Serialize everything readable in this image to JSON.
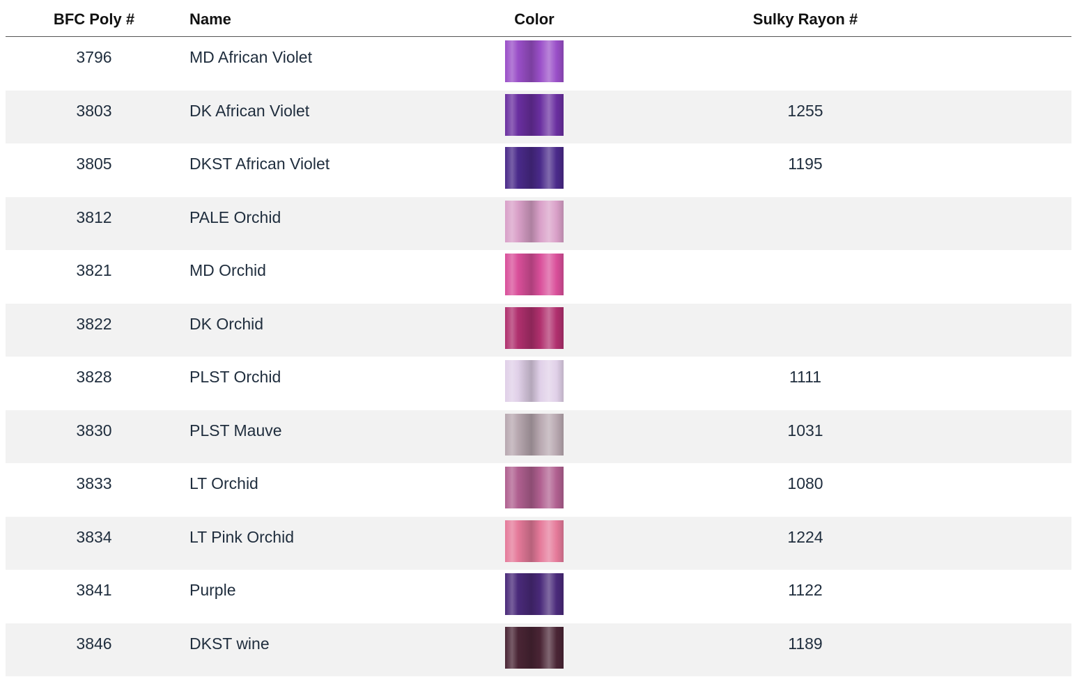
{
  "table": {
    "columns": [
      "BFC Poly #",
      "Name",
      "Color",
      "Sulky Rayon #"
    ],
    "rows": [
      {
        "poly": "3796",
        "name": "MD African Violet",
        "swatch": "#9a4fc8",
        "sulky": null
      },
      {
        "poly": "3803",
        "name": "DK African Violet",
        "swatch": "#6a2fa0",
        "sulky": "1255"
      },
      {
        "poly": "3805",
        "name": "DKST African Violet",
        "swatch": "#4a2a8a",
        "sulky": "1195"
      },
      {
        "poly": "3812",
        "name": "PALE Orchid",
        "swatch": "#d9a0c8",
        "sulky": null
      },
      {
        "poly": "3821",
        "name": "MD Orchid",
        "swatch": "#d94f9a",
        "sulky": null
      },
      {
        "poly": "3822",
        "name": "DK Orchid",
        "swatch": "#b0306e",
        "sulky": null
      },
      {
        "poly": "3828",
        "name": "PLST Orchid",
        "swatch": "#e0d0e8",
        "sulky": "1111"
      },
      {
        "poly": "3830",
        "name": "PLST Mauve",
        "swatch": "#b8a8b0",
        "sulky": "1031"
      },
      {
        "poly": "3833",
        "name": "LT Orchid",
        "swatch": "#b06090",
        "sulky": "1080"
      },
      {
        "poly": "3834",
        "name": "LT Pink Orchid",
        "swatch": "#e57a9a",
        "sulky": "1224"
      },
      {
        "poly": "3841",
        "name": "Purple",
        "swatch": "#4a2a7a",
        "sulky": "1122"
      },
      {
        "poly": "3846",
        "name": "DKST wine",
        "swatch": "#4a2535",
        "sulky": "1189"
      }
    ]
  }
}
